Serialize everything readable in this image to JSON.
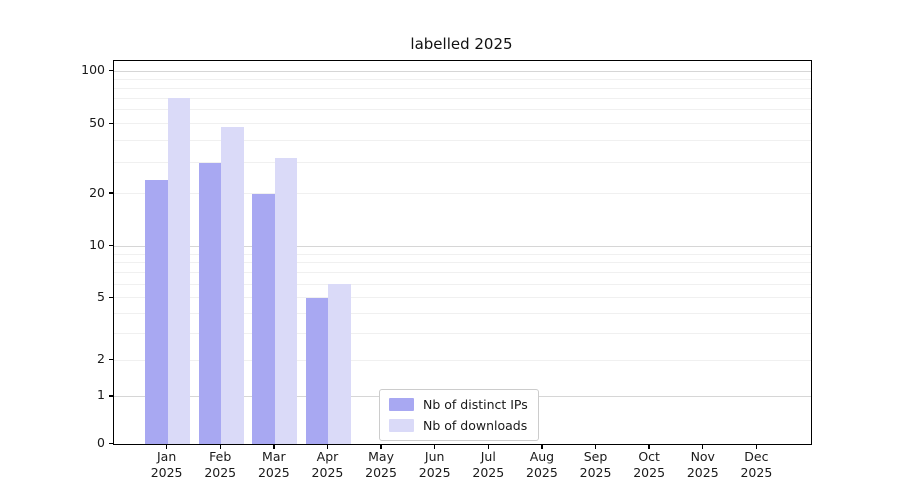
{
  "chart_data": {
    "type": "bar",
    "title": "labelled 2025",
    "categories": [
      "Jan",
      "Feb",
      "Mar",
      "Apr",
      "May",
      "Jun",
      "Jul",
      "Aug",
      "Sep",
      "Oct",
      "Nov",
      "Dec"
    ],
    "year_label": "2025",
    "series": [
      {
        "name": "Nb of distinct IPs",
        "color": "#a8a8f2",
        "values": [
          24,
          30,
          20,
          5,
          0,
          0,
          0,
          0,
          0,
          0,
          0,
          0
        ]
      },
      {
        "name": "Nb of downloads",
        "color": "#dadaf8",
        "values": [
          70,
          48,
          32,
          6,
          0,
          0,
          0,
          0,
          0,
          0,
          0,
          0
        ]
      }
    ],
    "y_axis": {
      "scale": "asinh-log",
      "tick_labels": [
        0,
        1,
        2,
        5,
        10,
        20,
        50,
        100
      ],
      "range": [
        0,
        115
      ],
      "minor_gridlines": [
        2,
        3,
        4,
        5,
        6,
        7,
        8,
        9,
        20,
        30,
        40,
        50,
        60,
        70,
        80,
        90
      ],
      "major_gridlines": [
        1,
        10,
        100
      ],
      "minor_grid_color": "#f0f0f0",
      "major_grid_color": "#d6d6d6"
    },
    "legend": {
      "position": "bottom-center",
      "entries": [
        "Nb of distinct IPs",
        "Nb of downloads"
      ]
    }
  }
}
